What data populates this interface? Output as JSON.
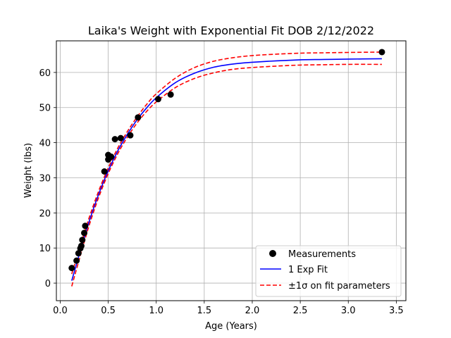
{
  "chart_data": {
    "type": "scatter",
    "title": "Laika's Weight with Exponential Fit DOB 2/12/2022",
    "xlabel": "Age (Years)",
    "ylabel": "Weight (lbs)",
    "xlim": [
      -0.04,
      3.6
    ],
    "ylim": [
      -5,
      69
    ],
    "xticks": [
      0.0,
      0.5,
      1.0,
      1.5,
      2.0,
      2.5,
      3.0,
      3.5
    ],
    "xtick_labels": [
      "0.0",
      "0.5",
      "1.0",
      "1.5",
      "2.0",
      "2.5",
      "3.0",
      "3.5"
    ],
    "yticks": [
      0,
      10,
      20,
      30,
      40,
      50,
      60
    ],
    "ytick_labels": [
      "0",
      "10",
      "20",
      "30",
      "40",
      "50",
      "60"
    ],
    "grid": true,
    "legend_position": "lower-right",
    "colors": {
      "measurements": "#000000",
      "fit": "#0000ff",
      "bounds": "#ff0000",
      "grid": "#b0b0b0"
    },
    "series": [
      {
        "name": "Measurements",
        "kind": "scatter",
        "points": [
          [
            0.12,
            4.3
          ],
          [
            0.17,
            6.4
          ],
          [
            0.19,
            8.5
          ],
          [
            0.21,
            9.9
          ],
          [
            0.22,
            10.6
          ],
          [
            0.23,
            12.3
          ],
          [
            0.25,
            14.3
          ],
          [
            0.26,
            16.3
          ],
          [
            0.46,
            31.8
          ],
          [
            0.5,
            35.2
          ],
          [
            0.5,
            36.5
          ],
          [
            0.53,
            36.0
          ],
          [
            0.57,
            41.0
          ],
          [
            0.63,
            41.3
          ],
          [
            0.73,
            42.1
          ],
          [
            0.81,
            47.2
          ],
          [
            1.02,
            52.4
          ],
          [
            1.15,
            53.7
          ],
          [
            3.35,
            65.8
          ]
        ]
      },
      {
        "name": "1 Exp Fit",
        "kind": "line",
        "x": [
          0.12,
          0.2,
          0.3,
          0.4,
          0.5,
          0.6,
          0.7,
          0.8,
          0.9,
          1.0,
          1.2,
          1.4,
          1.6,
          1.8,
          2.0,
          2.25,
          2.5,
          2.75,
          3.0,
          3.35
        ],
        "y": [
          0.7,
          8.3,
          17.4,
          25.3,
          32.0,
          37.7,
          42.4,
          46.5,
          49.9,
          52.8,
          57.1,
          59.8,
          61.5,
          62.4,
          62.9,
          63.3,
          63.6,
          63.7,
          63.8,
          63.9
        ]
      },
      {
        "name": "±1σ on fit parameters",
        "kind": "dashed",
        "x": [
          0.12,
          0.2,
          0.3,
          0.4,
          0.5,
          0.6,
          0.7,
          0.8,
          0.9,
          1.0,
          1.2,
          1.4,
          1.6,
          1.8,
          2.0,
          2.25,
          2.5,
          2.75,
          3.0,
          3.35
        ],
        "y": [
          2.6,
          9.7,
          18.5,
          26.2,
          32.8,
          38.5,
          43.2,
          47.3,
          50.9,
          53.9,
          58.4,
          61.4,
          63.2,
          64.2,
          64.8,
          65.2,
          65.5,
          65.6,
          65.7,
          65.8
        ]
      },
      {
        "name": "",
        "kind": "dashed",
        "x": [
          0.12,
          0.2,
          0.3,
          0.4,
          0.5,
          0.6,
          0.7,
          0.8,
          0.9,
          1.0,
          1.2,
          1.4,
          1.6,
          1.8,
          2.0,
          2.25,
          2.5,
          2.75,
          3.0,
          3.35
        ],
        "y": [
          -0.9,
          6.9,
          16.3,
          24.4,
          31.2,
          36.9,
          41.6,
          45.6,
          48.9,
          51.6,
          55.7,
          58.3,
          59.9,
          60.9,
          61.4,
          61.8,
          62.1,
          62.2,
          62.3,
          62.3
        ]
      }
    ]
  }
}
